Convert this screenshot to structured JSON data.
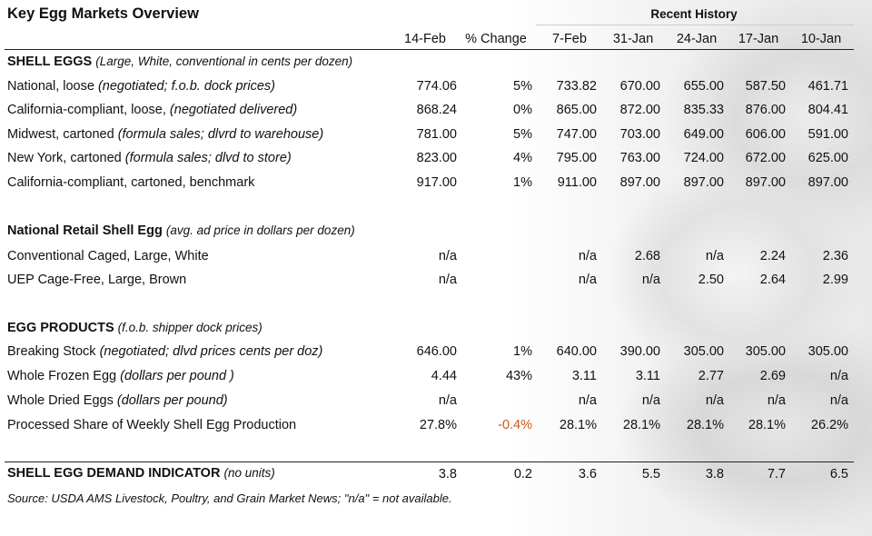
{
  "title": "Key Egg Markets Overview",
  "recent_history": "Recent History",
  "columns": [
    "14-Feb",
    "% Change",
    "7-Feb",
    "31-Jan",
    "24-Jan",
    "17-Jan",
    "10-Jan"
  ],
  "sections": [
    {
      "heading": "SHELL EGGS",
      "note": "(Large, White, conventional in cents per dozen)",
      "rows": [
        {
          "label": "National, loose",
          "note": "(negotiated; f.o.b. dock prices)",
          "cells": [
            "774.06",
            "5%",
            "733.82",
            "670.00",
            "655.00",
            "587.50",
            "461.71"
          ]
        },
        {
          "label": "California-compliant, loose,",
          "note": "(negotiated delivered)",
          "cells": [
            "868.24",
            "0%",
            "865.00",
            "872.00",
            "835.33",
            "876.00",
            "804.41"
          ]
        },
        {
          "label": "Midwest, cartoned",
          "note": "(formula sales; dlvrd to warehouse)",
          "cells": [
            "781.00",
            "5%",
            "747.00",
            "703.00",
            "649.00",
            "606.00",
            "591.00"
          ]
        },
        {
          "label": "New York, cartoned",
          "note": "(formula sales; dlvd to store)",
          "cells": [
            "823.00",
            "4%",
            "795.00",
            "763.00",
            "724.00",
            "672.00",
            "625.00"
          ]
        },
        {
          "label": "California-compliant, cartoned, benchmark",
          "note": null,
          "cells": [
            "917.00",
            "1%",
            "911.00",
            "897.00",
            "897.00",
            "897.00",
            "897.00"
          ]
        }
      ]
    },
    {
      "heading": "National Retail Shell Egg",
      "note": "(avg. ad price in dollars per dozen)",
      "rows": [
        {
          "label": "Conventional Caged, Large, White",
          "note": null,
          "cells": [
            "n/a",
            null,
            "n/a",
            "2.68",
            "n/a",
            "2.24",
            "2.36"
          ]
        },
        {
          "label": "UEP Cage-Free, Large, Brown",
          "note": null,
          "cells": [
            "n/a",
            null,
            "n/a",
            "n/a",
            "2.50",
            "2.64",
            "2.99"
          ]
        }
      ]
    },
    {
      "heading": "EGG PRODUCTS",
      "note": "(f.o.b. shipper dock prices)",
      "rows": [
        {
          "label": "Breaking Stock",
          "note": "(negotiated; dlvd prices cents per doz)",
          "cells": [
            "646.00",
            "1%",
            "640.00",
            "390.00",
            "305.00",
            "305.00",
            "305.00"
          ]
        },
        {
          "label": "Whole Frozen Egg",
          "note": "(dollars per pound )",
          "cells": [
            "4.44",
            "43%",
            "3.11",
            "3.11",
            "2.77",
            "2.69",
            "n/a"
          ]
        },
        {
          "label": "Whole Dried Eggs",
          "note": "(dollars per pound)",
          "cells": [
            "n/a",
            null,
            "n/a",
            "n/a",
            "n/a",
            "n/a",
            "n/a"
          ]
        },
        {
          "label": "Processed Share of Weekly Shell Egg Production",
          "note": null,
          "cells": [
            "27.8%",
            "-0.4%",
            "28.1%",
            "28.1%",
            "28.1%",
            "28.1%",
            "26.2%"
          ]
        }
      ]
    }
  ],
  "demand": {
    "heading": "SHELL EGG DEMAND INDICATOR",
    "note": "(no units)",
    "cells": [
      "3.8",
      "0.2",
      "3.6",
      "5.5",
      "3.8",
      "7.7",
      "6.5"
    ]
  },
  "source": "Source: USDA AMS Livestock, Poultry, and Grain Market News; \"n/a\" = not available."
}
